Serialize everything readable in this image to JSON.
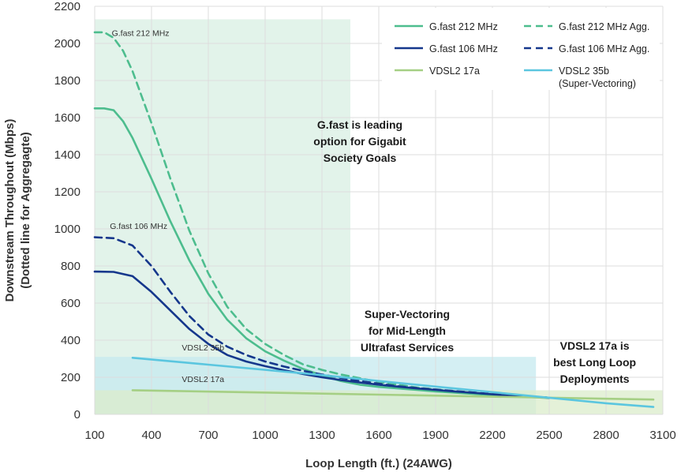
{
  "chart_data": {
    "type": "line",
    "xlabel": "Loop Length (ft.) (24AWG)",
    "ylabel": [
      "Downstream Throughout (Mbps)",
      "(Dotted line for Aggregagte)"
    ],
    "xlim": [
      100,
      3100
    ],
    "ylim": [
      0,
      2200
    ],
    "x_ticks": [
      "100",
      "400",
      "700",
      "1000",
      "1300",
      "1600",
      "1900",
      "2200",
      "2500",
      "2800",
      "3100"
    ],
    "y_ticks": [
      "0",
      "200",
      "400",
      "600",
      "800",
      "1000",
      "1200",
      "1400",
      "1600",
      "1800",
      "2000",
      "2200"
    ],
    "grid": true,
    "legend_position": "top-right",
    "regions": [
      {
        "x": [
          100,
          1450
        ],
        "y": [
          0,
          2130
        ],
        "color": "#d8efe3",
        "text": [
          "G.fast is leading",
          "option for Gigabit",
          "Society Goals"
        ],
        "text_anchor": [
          1500,
          1540
        ]
      },
      {
        "x": [
          100,
          2430
        ],
        "y": [
          0,
          310
        ],
        "color": "#c5e9ef",
        "text": [
          "Super-Vectoring",
          "for Mid-Length",
          "Ultrafast Services"
        ],
        "text_anchor": [
          1750,
          520
        ]
      },
      {
        "x": [
          100,
          3100
        ],
        "y": [
          0,
          130
        ],
        "color": "#dbeccb",
        "text": [
          "VDSL2 17a is",
          "best Long Loop",
          "Deployments"
        ],
        "text_anchor": [
          2740,
          350
        ]
      }
    ],
    "series": [
      {
        "name": "G.fast 212 MHz",
        "color": "#4dbd8e",
        "dashed": false,
        "x": [
          100,
          150,
          200,
          250,
          300,
          400,
          500,
          600,
          700,
          800,
          900,
          1000,
          1100,
          1200,
          1300,
          1400,
          1500,
          1600,
          1700,
          1800,
          1900,
          2000,
          2100,
          2200,
          2300,
          2400,
          2500
        ],
        "y": [
          1650,
          1650,
          1640,
          1580,
          1490,
          1270,
          1040,
          830,
          650,
          510,
          410,
          340,
          290,
          245,
          210,
          180,
          160,
          148,
          140,
          132,
          124,
          117,
          110,
          104,
          98,
          93,
          88
        ]
      },
      {
        "name": "G.fast 212 MHz Agg.",
        "color": "#4dbd8e",
        "dashed": true,
        "x": [
          100,
          150,
          200,
          250,
          300,
          400,
          500,
          600,
          700,
          800,
          900,
          1000,
          1100,
          1200,
          1300,
          1400,
          1500,
          1600,
          1700,
          1800,
          1900,
          2000,
          2100,
          2200,
          2300,
          2400,
          2500
        ],
        "y": [
          2060,
          2060,
          2030,
          1960,
          1850,
          1570,
          1270,
          990,
          760,
          580,
          460,
          380,
          320,
          270,
          240,
          215,
          195,
          175,
          160,
          145,
          135,
          125,
          115,
          108,
          100,
          95,
          90
        ]
      },
      {
        "name": "G.fast 106 MHz",
        "color": "#15378c",
        "dashed": false,
        "x": [
          100,
          200,
          300,
          400,
          500,
          600,
          700,
          800,
          900,
          1000,
          1100,
          1200,
          1300,
          1400,
          1500,
          1600,
          1700,
          1800,
          1900,
          2000,
          2100,
          2200,
          2300,
          2400,
          2500
        ],
        "y": [
          770,
          768,
          745,
          660,
          560,
          460,
          380,
          320,
          285,
          260,
          238,
          218,
          200,
          185,
          172,
          160,
          150,
          140,
          132,
          124,
          116,
          108,
          101,
          95,
          90
        ]
      },
      {
        "name": "G.fast 106 MHz Agg.",
        "color": "#15378c",
        "dashed": true,
        "x": [
          100,
          200,
          300,
          400,
          500,
          600,
          700,
          800,
          900,
          1000,
          1100,
          1200,
          1300,
          1400,
          1500,
          1600,
          1700,
          1800,
          1900,
          2000,
          2100,
          2200,
          2300,
          2400,
          2500
        ],
        "y": [
          955,
          950,
          910,
          800,
          660,
          530,
          430,
          365,
          320,
          285,
          258,
          235,
          215,
          197,
          180,
          165,
          152,
          142,
          134,
          126,
          118,
          110,
          103,
          96,
          90
        ]
      },
      {
        "name": "VDSL2 17a",
        "color": "#a5cf84",
        "dashed": false,
        "x": [
          300,
          3050
        ],
        "y": [
          130,
          80
        ]
      },
      {
        "name": "VDSL2 35b (Super-Vectoring)",
        "color": "#5bc6df",
        "dashed": false,
        "x": [
          300,
          700,
          1000,
          1300,
          1600,
          1900,
          2200,
          2500,
          2800,
          3050
        ],
        "y": [
          305,
          268,
          240,
          212,
          180,
          150,
          120,
          90,
          60,
          40
        ]
      }
    ],
    "legend": [
      {
        "label": "G.fast 212 MHz",
        "color": "#4dbd8e",
        "dashed": false
      },
      {
        "label": "G.fast 212 MHz Agg.",
        "color": "#4dbd8e",
        "dashed": true
      },
      {
        "label": "G.fast 106 MHz",
        "color": "#15378c",
        "dashed": false
      },
      {
        "label": "G.fast 106 MHz Agg.",
        "color": "#15378c",
        "dashed": true
      },
      {
        "label": "VDSL2 17a",
        "color": "#a5cf84",
        "dashed": false
      },
      {
        "label": [
          "VDSL2 35b",
          "(Super-Vectoring)"
        ],
        "color": "#5bc6df",
        "dashed": false
      }
    ],
    "annotations": [
      {
        "text": "G.fast 212 MHz",
        "x": 190,
        "y": 2040
      },
      {
        "text": "G.fast 106 MHz",
        "x": 180,
        "y": 1000
      },
      {
        "text": "VDSL2 35b",
        "x": 560,
        "y": 345
      },
      {
        "text": "VDSL2 17a",
        "x": 560,
        "y": 175
      }
    ]
  }
}
